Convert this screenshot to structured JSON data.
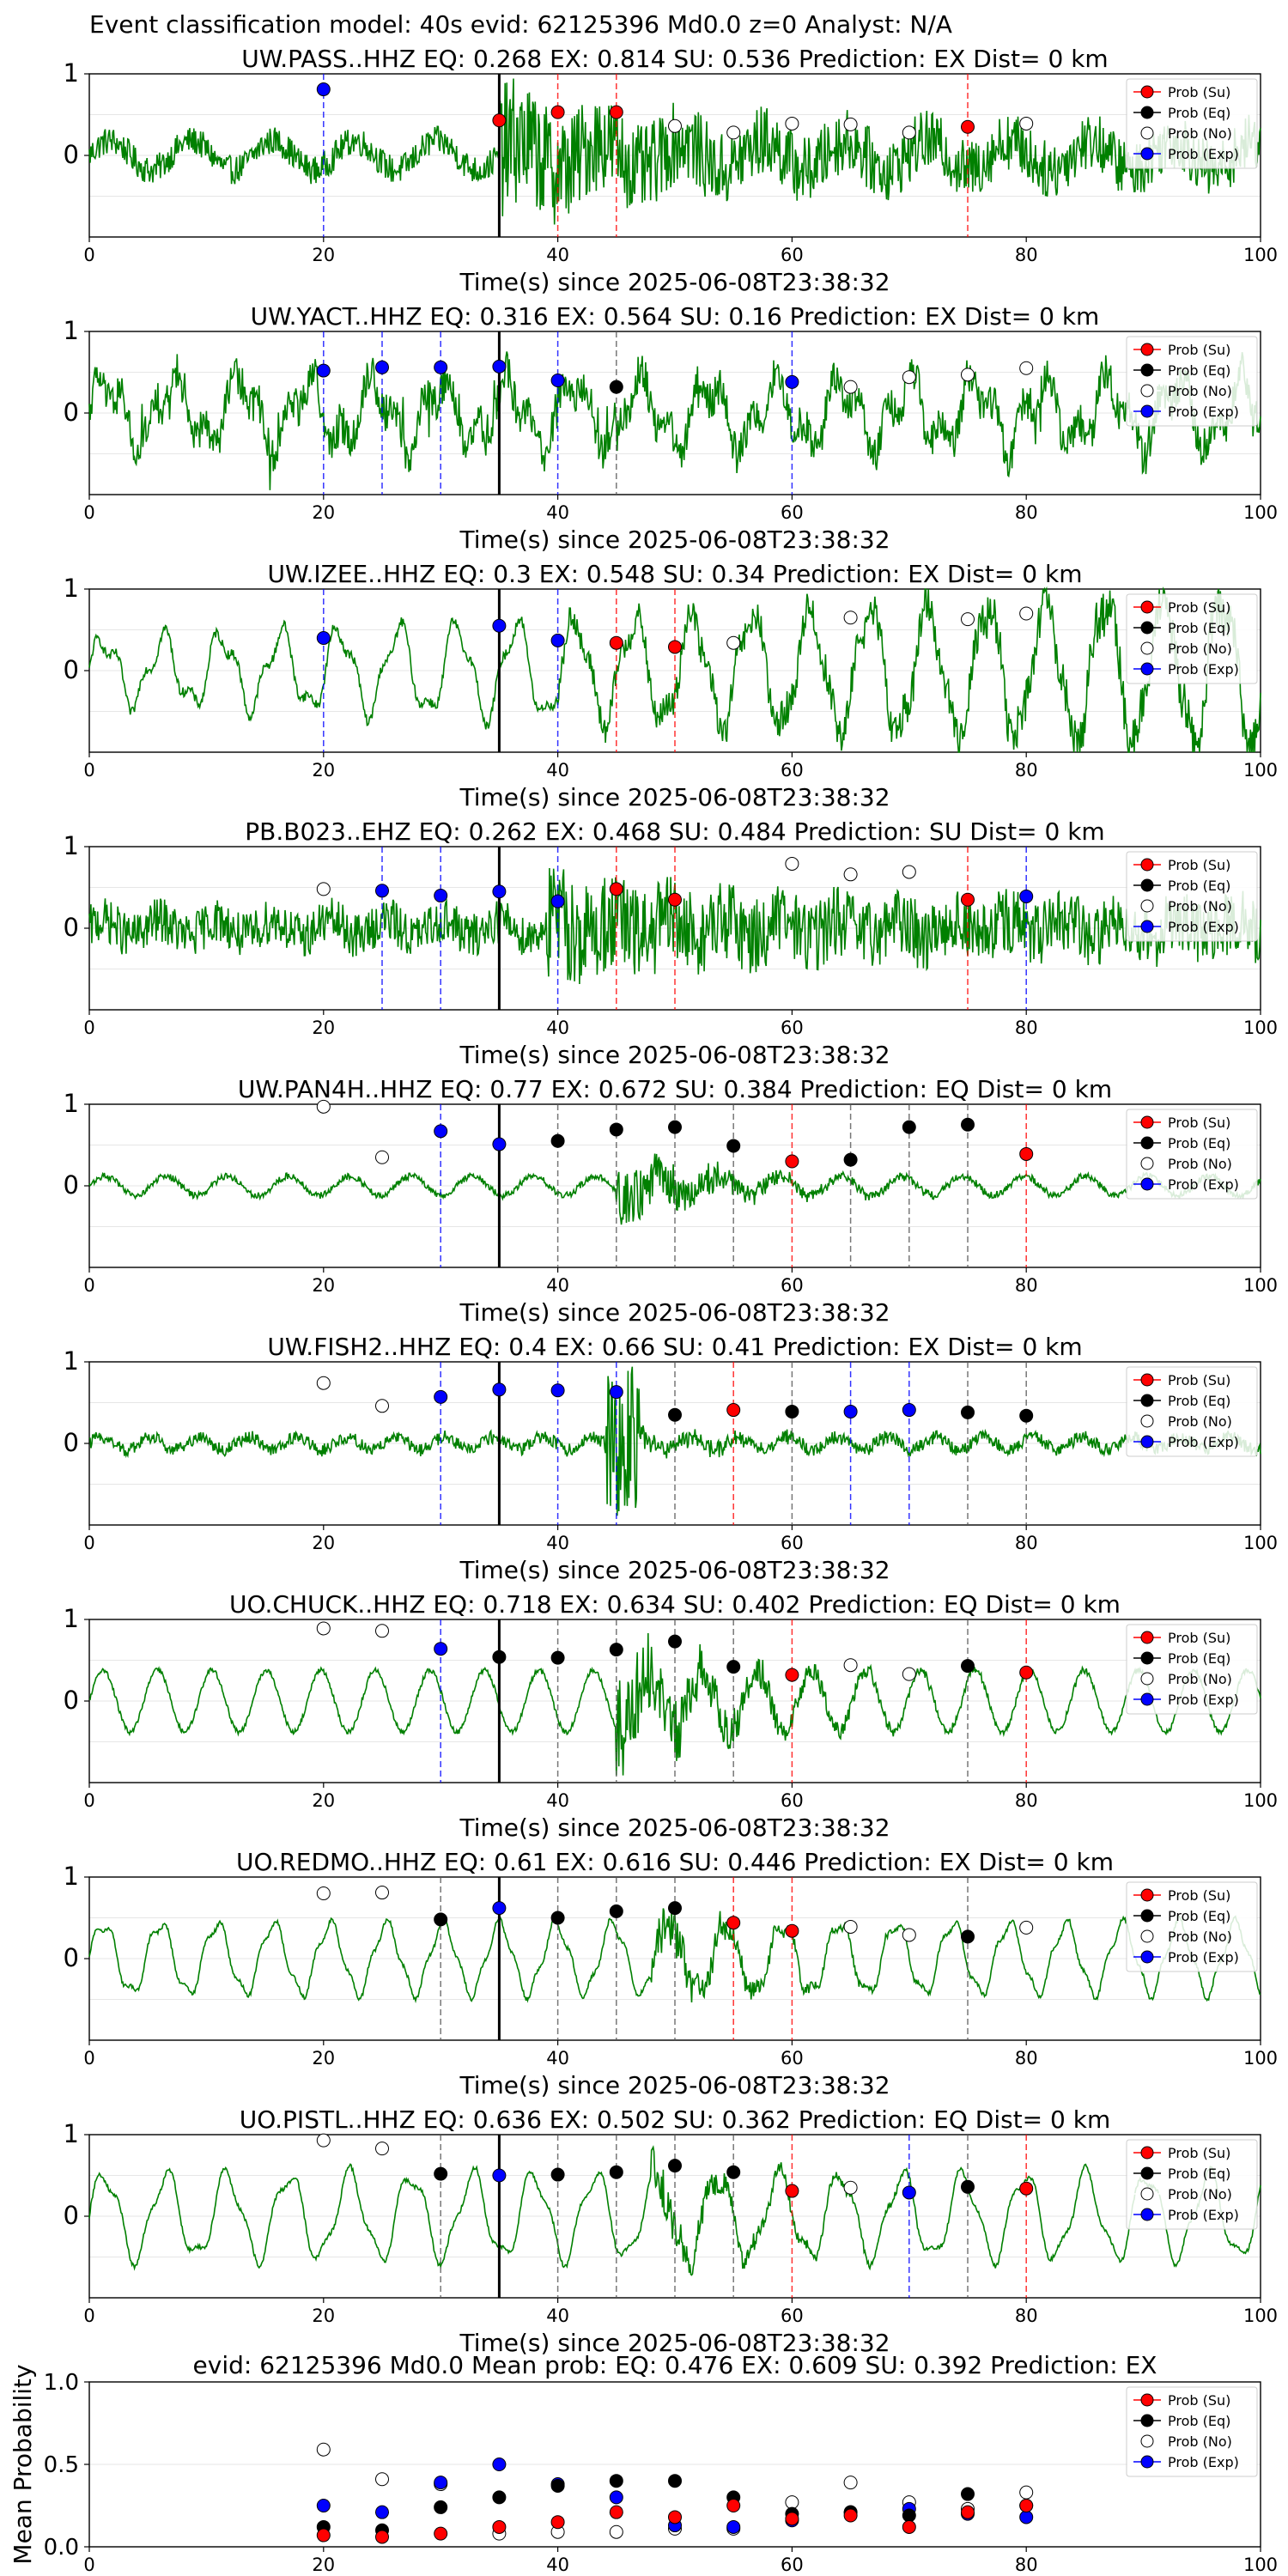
{
  "suptitle": "Event classification model: 40s evid: 62125396 Md0.0 z=0 Analyst: N/A",
  "legend": {
    "su": "Prob (Su)",
    "eq": "Prob (Eq)",
    "no": "Prob (No)",
    "exp": "Prob (Exp)",
    "placement": "top-right"
  },
  "colors": {
    "trace": "#008000",
    "su": "#ff0000",
    "eq": "#000000",
    "no": "#ffffff",
    "exp": "#0000ff",
    "su_line": "#ff0000",
    "eq_line": "#555555",
    "exp_line": "#0000ff"
  },
  "chart_data": [
    {
      "type": "line",
      "title": "UW.PASS..HHZ   EQ: 0.268  EX: 0.814  SU: 0.536   Prediction: EX    Dist= 0 km",
      "xlabel": "Time(s) since 2025-06-08T23:38:32",
      "xlim": [
        0,
        100
      ],
      "ylim": [
        -1,
        1
      ],
      "xticks": [
        "0",
        "20",
        "40",
        "60",
        "80",
        "100"
      ],
      "yticks": [
        "1",
        "0"
      ],
      "grid": true,
      "pick_time": 35,
      "trace": {
        "style": "noisy-high",
        "event_time": 35
      },
      "windows": [
        {
          "t": 20,
          "class": "exp",
          "prob": 0.81
        },
        {
          "t": 35,
          "class": "su",
          "prob": 0.43
        },
        {
          "t": 40,
          "class": "su",
          "prob": 0.53
        },
        {
          "t": 45,
          "class": "su",
          "prob": 0.53
        },
        {
          "t": 50,
          "class": "no",
          "prob": 0.36
        },
        {
          "t": 55,
          "class": "no",
          "prob": 0.28
        },
        {
          "t": 60,
          "class": "no",
          "prob": 0.39
        },
        {
          "t": 65,
          "class": "no",
          "prob": 0.38
        },
        {
          "t": 70,
          "class": "no",
          "prob": 0.28
        },
        {
          "t": 75,
          "class": "su",
          "prob": 0.35
        },
        {
          "t": 80,
          "class": "no",
          "prob": 0.39
        }
      ]
    },
    {
      "type": "line",
      "title": "UW.YACT..HHZ   EQ: 0.316  EX: 0.564  SU: 0.16   Prediction: EX    Dist= 0 km",
      "xlabel": "Time(s) since 2025-06-08T23:38:32",
      "xlim": [
        0,
        100
      ],
      "ylim": [
        -1,
        1
      ],
      "xticks": [
        "0",
        "20",
        "40",
        "60",
        "80",
        "100"
      ],
      "yticks": [
        "1",
        "0"
      ],
      "grid": true,
      "pick_time": 35,
      "trace": {
        "style": "mixed-spiky",
        "event_time": 38
      },
      "windows": [
        {
          "t": 20,
          "class": "exp",
          "prob": 0.52
        },
        {
          "t": 25,
          "class": "exp",
          "prob": 0.56
        },
        {
          "t": 30,
          "class": "exp",
          "prob": 0.56
        },
        {
          "t": 35,
          "class": "exp",
          "prob": 0.57
        },
        {
          "t": 40,
          "class": "exp",
          "prob": 0.4
        },
        {
          "t": 45,
          "class": "eq",
          "prob": 0.32
        },
        {
          "t": 60,
          "class": "exp",
          "prob": 0.38
        },
        {
          "t": 65,
          "class": "no",
          "prob": 0.32
        },
        {
          "t": 70,
          "class": "no",
          "prob": 0.44
        },
        {
          "t": 75,
          "class": "no",
          "prob": 0.47
        },
        {
          "t": 80,
          "class": "no",
          "prob": 0.55
        }
      ]
    },
    {
      "type": "line",
      "title": "UW.IZEE..HHZ   EQ: 0.3  EX: 0.548  SU: 0.34   Prediction: EX    Dist= 0 km",
      "xlabel": "Time(s) since 2025-06-08T23:38:32",
      "xlim": [
        0,
        100
      ],
      "ylim": [
        -1,
        1
      ],
      "xticks": [
        "0",
        "20",
        "40",
        "60",
        "80",
        "100"
      ],
      "yticks": [
        "1",
        "0"
      ],
      "grid": true,
      "pick_time": 35,
      "trace": {
        "style": "wavy-growing",
        "event_time": 40
      },
      "windows": [
        {
          "t": 20,
          "class": "exp",
          "prob": 0.4
        },
        {
          "t": 35,
          "class": "exp",
          "prob": 0.55
        },
        {
          "t": 40,
          "class": "exp",
          "prob": 0.37
        },
        {
          "t": 45,
          "class": "su",
          "prob": 0.34
        },
        {
          "t": 50,
          "class": "su",
          "prob": 0.29
        },
        {
          "t": 55,
          "class": "no",
          "prob": 0.34
        },
        {
          "t": 65,
          "class": "no",
          "prob": 0.65
        },
        {
          "t": 75,
          "class": "no",
          "prob": 0.63
        },
        {
          "t": 80,
          "class": "no",
          "prob": 0.7
        }
      ]
    },
    {
      "type": "line",
      "title": "PB.B023..EHZ   EQ: 0.262  EX: 0.468  SU: 0.484   Prediction: SU    Dist= 0 km",
      "xlabel": "Time(s) since 2025-06-08T23:38:32",
      "xlim": [
        0,
        100
      ],
      "ylim": [
        -1,
        1
      ],
      "xticks": [
        "0",
        "20",
        "40",
        "60",
        "80",
        "100"
      ],
      "yticks": [
        "1",
        "0"
      ],
      "grid": true,
      "pick_time": 35,
      "trace": {
        "style": "noisy-medium",
        "event_time": 39
      },
      "windows": [
        {
          "t": 20,
          "class": "no",
          "prob": 0.48
        },
        {
          "t": 25,
          "class": "exp",
          "prob": 0.46
        },
        {
          "t": 30,
          "class": "exp",
          "prob": 0.4
        },
        {
          "t": 35,
          "class": "exp",
          "prob": 0.45
        },
        {
          "t": 40,
          "class": "exp",
          "prob": 0.33
        },
        {
          "t": 45,
          "class": "su",
          "prob": 0.48
        },
        {
          "t": 50,
          "class": "su",
          "prob": 0.35
        },
        {
          "t": 60,
          "class": "no",
          "prob": 0.79
        },
        {
          "t": 65,
          "class": "no",
          "prob": 0.66
        },
        {
          "t": 70,
          "class": "no",
          "prob": 0.69
        },
        {
          "t": 75,
          "class": "su",
          "prob": 0.35
        },
        {
          "t": 80,
          "class": "exp",
          "prob": 0.39
        }
      ]
    },
    {
      "type": "line",
      "title": "UW.PAN4H..HHZ   EQ: 0.77  EX: 0.672  SU: 0.384   Prediction: EQ    Dist= 0 km",
      "xlabel": "Time(s) since 2025-06-08T23:38:32",
      "xlim": [
        0,
        100
      ],
      "ylim": [
        -1,
        1
      ],
      "xticks": [
        "0",
        "20",
        "40",
        "60",
        "80",
        "100"
      ],
      "yticks": [
        "1",
        "0"
      ],
      "grid": true,
      "pick_time": 35,
      "trace": {
        "style": "quiet-burst",
        "event_time": 45
      },
      "windows": [
        {
          "t": 20,
          "class": "no",
          "prob": 0.97
        },
        {
          "t": 25,
          "class": "no",
          "prob": 0.35
        },
        {
          "t": 30,
          "class": "exp",
          "prob": 0.67
        },
        {
          "t": 35,
          "class": "exp",
          "prob": 0.51
        },
        {
          "t": 40,
          "class": "eq",
          "prob": 0.55
        },
        {
          "t": 45,
          "class": "eq",
          "prob": 0.69
        },
        {
          "t": 50,
          "class": "eq",
          "prob": 0.72
        },
        {
          "t": 55,
          "class": "eq",
          "prob": 0.49
        },
        {
          "t": 60,
          "class": "su",
          "prob": 0.3
        },
        {
          "t": 65,
          "class": "eq",
          "prob": 0.32
        },
        {
          "t": 70,
          "class": "eq",
          "prob": 0.72
        },
        {
          "t": 75,
          "class": "eq",
          "prob": 0.75
        },
        {
          "t": 80,
          "class": "su",
          "prob": 0.39
        }
      ]
    },
    {
      "type": "line",
      "title": "UW.FISH2..HHZ   EQ: 0.4  EX: 0.66  SU: 0.41   Prediction: EX    Dist= 0 km",
      "xlabel": "Time(s) since 2025-06-08T23:38:32",
      "xlim": [
        0,
        100
      ],
      "ylim": [
        -1,
        1
      ],
      "xticks": [
        "0",
        "20",
        "40",
        "60",
        "80",
        "100"
      ],
      "yticks": [
        "1",
        "0"
      ],
      "grid": true,
      "pick_time": 35,
      "trace": {
        "style": "quiet-spike",
        "event_time": 45
      },
      "windows": [
        {
          "t": 20,
          "class": "no",
          "prob": 0.74
        },
        {
          "t": 25,
          "class": "no",
          "prob": 0.46
        },
        {
          "t": 30,
          "class": "exp",
          "prob": 0.57
        },
        {
          "t": 35,
          "class": "exp",
          "prob": 0.66
        },
        {
          "t": 40,
          "class": "exp",
          "prob": 0.65
        },
        {
          "t": 45,
          "class": "exp",
          "prob": 0.63
        },
        {
          "t": 50,
          "class": "eq",
          "prob": 0.35
        },
        {
          "t": 55,
          "class": "su",
          "prob": 0.41
        },
        {
          "t": 60,
          "class": "eq",
          "prob": 0.39
        },
        {
          "t": 65,
          "class": "exp",
          "prob": 0.39
        },
        {
          "t": 70,
          "class": "exp",
          "prob": 0.41
        },
        {
          "t": 75,
          "class": "eq",
          "prob": 0.38
        },
        {
          "t": 80,
          "class": "eq",
          "prob": 0.34
        }
      ]
    },
    {
      "type": "line",
      "title": "UO.CHUCK..HHZ   EQ: 0.718  EX: 0.634  SU: 0.402   Prediction: EQ    Dist= 0 km",
      "xlabel": "Time(s) since 2025-06-08T23:38:32",
      "xlim": [
        0,
        100
      ],
      "ylim": [
        -1,
        1
      ],
      "xticks": [
        "0",
        "20",
        "40",
        "60",
        "80",
        "100"
      ],
      "yticks": [
        "1",
        "0"
      ],
      "grid": true,
      "pick_time": 35,
      "trace": {
        "style": "wavy-burst",
        "event_time": 45
      },
      "windows": [
        {
          "t": 20,
          "class": "no",
          "prob": 0.89
        },
        {
          "t": 25,
          "class": "no",
          "prob": 0.86
        },
        {
          "t": 30,
          "class": "exp",
          "prob": 0.64
        },
        {
          "t": 35,
          "class": "eq",
          "prob": 0.54
        },
        {
          "t": 40,
          "class": "eq",
          "prob": 0.53
        },
        {
          "t": 45,
          "class": "eq",
          "prob": 0.63
        },
        {
          "t": 50,
          "class": "eq",
          "prob": 0.73
        },
        {
          "t": 55,
          "class": "eq",
          "prob": 0.42
        },
        {
          "t": 60,
          "class": "su",
          "prob": 0.32
        },
        {
          "t": 65,
          "class": "no",
          "prob": 0.44
        },
        {
          "t": 70,
          "class": "no",
          "prob": 0.33
        },
        {
          "t": 75,
          "class": "eq",
          "prob": 0.43
        },
        {
          "t": 80,
          "class": "su",
          "prob": 0.35
        }
      ]
    },
    {
      "type": "line",
      "title": "UO.REDMO..HHZ   EQ: 0.61  EX: 0.616  SU: 0.446   Prediction: EX    Dist= 0 km",
      "xlabel": "Time(s) since 2025-06-08T23:38:32",
      "xlim": [
        0,
        100
      ],
      "ylim": [
        -1,
        1
      ],
      "xticks": [
        "0",
        "20",
        "40",
        "60",
        "80",
        "100"
      ],
      "yticks": [
        "1",
        "0"
      ],
      "grid": true,
      "pick_time": 35,
      "trace": {
        "style": "wavy-moderate",
        "event_time": 48
      },
      "windows": [
        {
          "t": 20,
          "class": "no",
          "prob": 0.8
        },
        {
          "t": 25,
          "class": "no",
          "prob": 0.81
        },
        {
          "t": 30,
          "class": "eq",
          "prob": 0.48
        },
        {
          "t": 35,
          "class": "exp",
          "prob": 0.62
        },
        {
          "t": 40,
          "class": "eq",
          "prob": 0.5
        },
        {
          "t": 45,
          "class": "eq",
          "prob": 0.58
        },
        {
          "t": 50,
          "class": "eq",
          "prob": 0.62
        },
        {
          "t": 55,
          "class": "su",
          "prob": 0.44
        },
        {
          "t": 60,
          "class": "su",
          "prob": 0.34
        },
        {
          "t": 65,
          "class": "no",
          "prob": 0.39
        },
        {
          "t": 70,
          "class": "no",
          "prob": 0.29
        },
        {
          "t": 75,
          "class": "eq",
          "prob": 0.27
        },
        {
          "t": 80,
          "class": "no",
          "prob": 0.38
        }
      ]
    },
    {
      "type": "line",
      "title": "UO.PISTL..HHZ   EQ: 0.636  EX: 0.502  SU: 0.362   Prediction: EQ    Dist= 0 km",
      "xlabel": "Time(s) since 2025-06-08T23:38:32",
      "xlim": [
        0,
        100
      ],
      "ylim": [
        -1,
        1
      ],
      "xticks": [
        "0",
        "20",
        "40",
        "60",
        "80",
        "100"
      ],
      "yticks": [
        "1",
        "0"
      ],
      "grid": true,
      "pick_time": 35,
      "trace": {
        "style": "wavy-large",
        "event_time": 48
      },
      "windows": [
        {
          "t": 20,
          "class": "no",
          "prob": 0.93
        },
        {
          "t": 25,
          "class": "no",
          "prob": 0.83
        },
        {
          "t": 30,
          "class": "eq",
          "prob": 0.52
        },
        {
          "t": 35,
          "class": "exp",
          "prob": 0.5
        },
        {
          "t": 40,
          "class": "eq",
          "prob": 0.51
        },
        {
          "t": 45,
          "class": "eq",
          "prob": 0.54
        },
        {
          "t": 50,
          "class": "eq",
          "prob": 0.62
        },
        {
          "t": 55,
          "class": "eq",
          "prob": 0.54
        },
        {
          "t": 60,
          "class": "su",
          "prob": 0.31
        },
        {
          "t": 65,
          "class": "no",
          "prob": 0.35
        },
        {
          "t": 70,
          "class": "exp",
          "prob": 0.29
        },
        {
          "t": 75,
          "class": "eq",
          "prob": 0.36
        },
        {
          "t": 80,
          "class": "su",
          "prob": 0.34
        }
      ]
    },
    {
      "type": "scatter",
      "title": "evid: 62125396  Md0.0    Mean prob:    EQ: 0.476  EX: 0.609  SU: 0.392   Prediction: EX",
      "ylabel": "Mean Probability",
      "xlim": [
        0,
        100
      ],
      "ylim": [
        0,
        1
      ],
      "xticks": [
        "0",
        "20",
        "40",
        "60",
        "80",
        "100"
      ],
      "yticks": [
        "0.0",
        "0.5",
        "1.0"
      ],
      "grid": true,
      "x": [
        20,
        25,
        30,
        35,
        40,
        45,
        50,
        55,
        60,
        65,
        70,
        75,
        80
      ],
      "series": [
        {
          "key": "no",
          "values": [
            0.59,
            0.41,
            0.38,
            0.08,
            0.09,
            0.09,
            0.11,
            0.11,
            0.27,
            0.39,
            0.27,
            0.23,
            0.33
          ]
        },
        {
          "key": "exp",
          "values": [
            0.25,
            0.21,
            0.39,
            0.5,
            0.38,
            0.3,
            0.13,
            0.12,
            0.16,
            0.21,
            0.23,
            0.2,
            0.18
          ]
        },
        {
          "key": "eq",
          "values": [
            0.12,
            0.1,
            0.24,
            0.3,
            0.37,
            0.4,
            0.4,
            0.3,
            0.2,
            0.21,
            0.19,
            0.32,
            0.25
          ]
        },
        {
          "key": "su",
          "values": [
            0.07,
            0.06,
            0.08,
            0.12,
            0.15,
            0.21,
            0.18,
            0.25,
            0.17,
            0.19,
            0.12,
            0.21,
            0.25
          ]
        }
      ]
    }
  ]
}
